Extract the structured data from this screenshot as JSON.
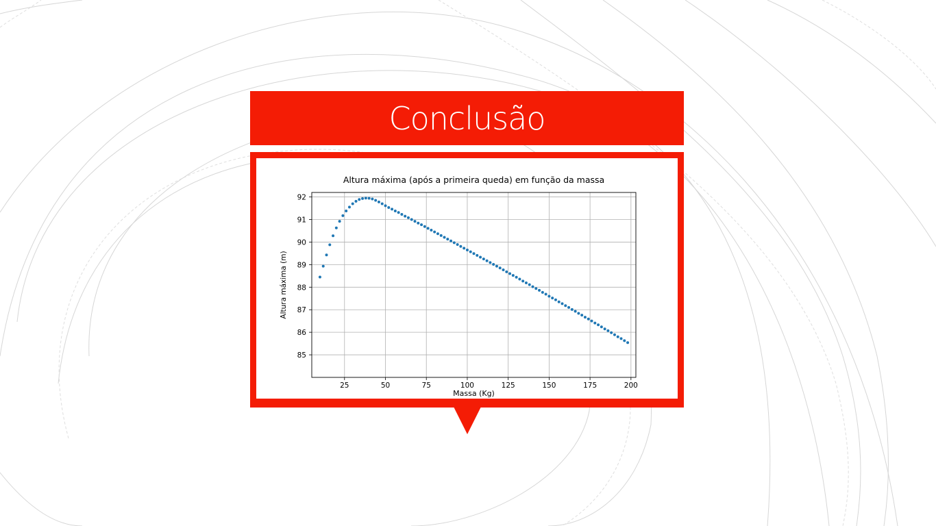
{
  "slide": {
    "title": "Conclusão",
    "accent_color": "#f41c05"
  },
  "chart_data": {
    "type": "scatter",
    "title": "Altura máxima (após a primeira queda) em função da massa",
    "xlabel": "Massa (Kg)",
    "ylabel": "Altura máxima (m)",
    "xlim": [
      5,
      203
    ],
    "ylim": [
      84.0,
      92.2
    ],
    "xticks": [
      "25",
      "50",
      "75",
      "100",
      "125",
      "150",
      "175",
      "200"
    ],
    "yticks": [
      "85",
      "86",
      "87",
      "88",
      "89",
      "90",
      "91",
      "92"
    ],
    "grid": true,
    "marker_color": "#1f77b4",
    "series": [
      {
        "x": [
          10,
          12,
          14,
          16,
          18,
          20,
          22,
          24,
          26,
          28,
          30,
          32,
          34,
          36,
          38,
          40,
          42,
          44,
          46,
          48,
          50,
          52,
          54,
          56,
          58,
          60,
          62,
          64,
          66,
          68,
          70,
          72,
          74,
          76,
          78,
          80,
          82,
          84,
          86,
          88,
          90,
          92,
          94,
          96,
          98,
          100,
          102,
          104,
          106,
          108,
          110,
          112,
          114,
          116,
          118,
          120,
          122,
          124,
          126,
          128,
          130,
          132,
          134,
          136,
          138,
          140,
          142,
          144,
          146,
          148,
          150,
          152,
          154,
          156,
          158,
          160,
          162,
          164,
          166,
          168,
          170,
          172,
          174,
          176,
          178,
          180,
          182,
          184,
          186,
          188,
          190,
          192,
          194,
          196,
          198
        ],
        "y": [
          88.45,
          88.93,
          89.43,
          89.88,
          90.28,
          90.63,
          90.92,
          91.17,
          91.38,
          91.55,
          91.7,
          91.81,
          91.89,
          91.93,
          91.95,
          91.94,
          91.91,
          91.85,
          91.78,
          91.7,
          91.61,
          91.53,
          91.46,
          91.38,
          91.31,
          91.23,
          91.15,
          91.08,
          91.0,
          90.92,
          90.84,
          90.77,
          90.69,
          90.61,
          90.53,
          90.45,
          90.37,
          90.29,
          90.21,
          90.13,
          90.05,
          89.97,
          89.89,
          89.81,
          89.73,
          89.65,
          89.57,
          89.49,
          89.41,
          89.33,
          89.25,
          89.17,
          89.09,
          89.01,
          88.93,
          88.85,
          88.77,
          88.68,
          88.6,
          88.52,
          88.44,
          88.36,
          88.27,
          88.19,
          88.11,
          88.02,
          87.94,
          87.86,
          87.77,
          87.69,
          87.6,
          87.52,
          87.44,
          87.35,
          87.27,
          87.18,
          87.1,
          87.01,
          86.93,
          86.84,
          86.76,
          86.67,
          86.59,
          86.5,
          86.41,
          86.33,
          86.24,
          86.15,
          86.07,
          85.98,
          85.89,
          85.8,
          85.72,
          85.63,
          85.54
        ]
      }
    ]
  }
}
